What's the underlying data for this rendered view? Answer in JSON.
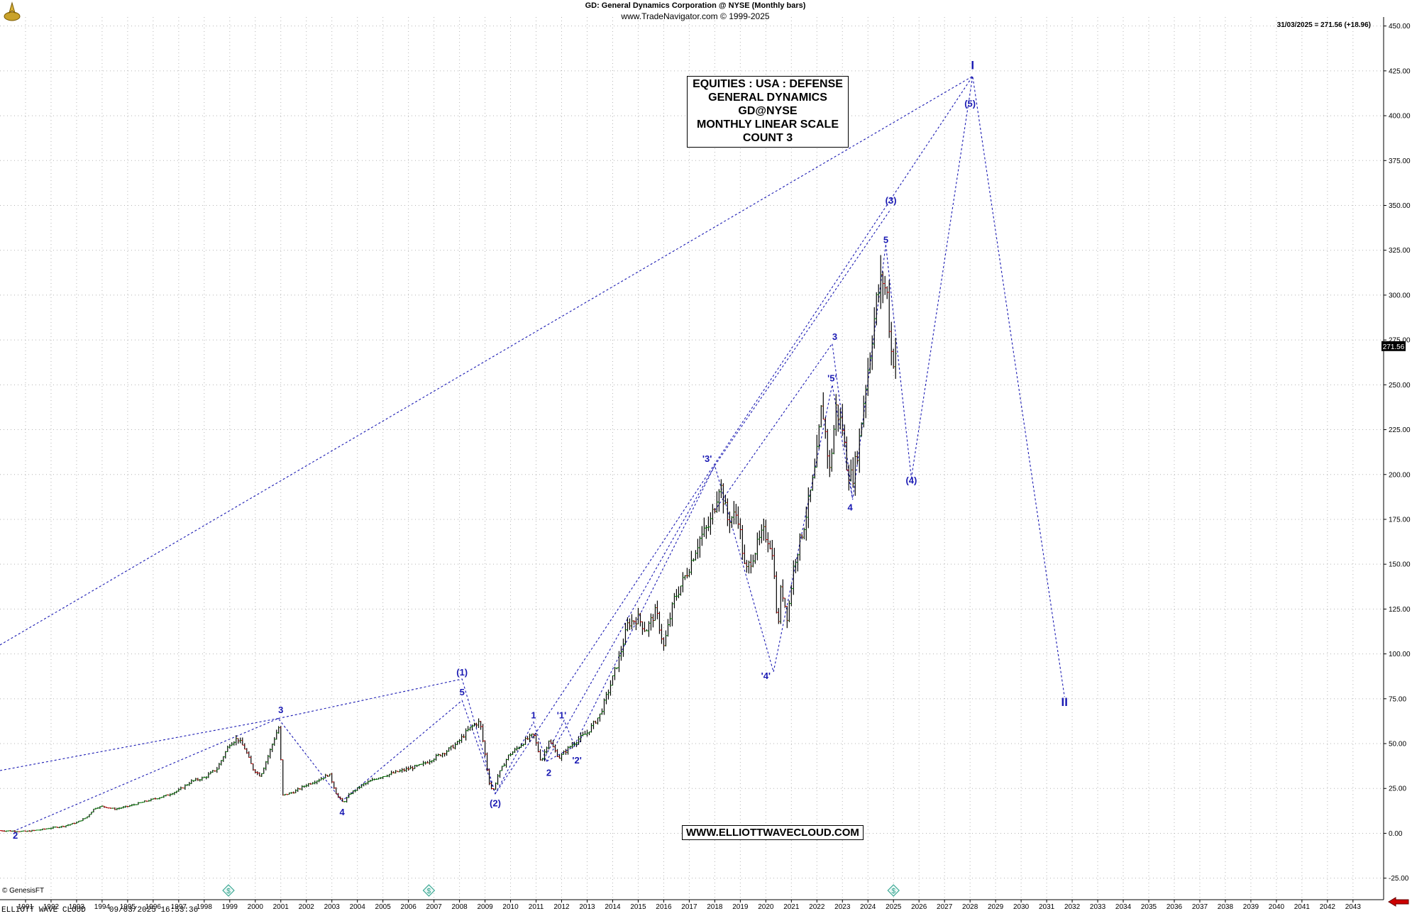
{
  "header": {
    "title_line": "GD:  General Dynamics Corporation @ NYSE  (Monthly bars)",
    "source_line": "www.TradeNavigator.com © 1999-2025",
    "last_price_line": "31/03/2025 = 271.56 (+18.96)"
  },
  "info_box": {
    "lines": [
      "EQUITIES : USA : DEFENSE",
      "GENERAL DYNAMICS",
      "GD@NYSE",
      "MONTHLY LINEAR SCALE",
      "COUNT 3"
    ]
  },
  "website_box": "WWW.ELLIOTTWAVECLOUD.COM",
  "footer": {
    "left_text": "ELLIOTT WAVE CLOUD",
    "timestamp": "09/03/2025 16:53:36",
    "genesis": "© GenesisFT"
  },
  "colors": {
    "price_bars": "#000000",
    "up_bars": "#008000",
    "down_bars": "#cc0000",
    "wave_lines": "#1a1ab3",
    "wave_labels": "#1a1ab3",
    "grid": "#b4b4b4",
    "arrow": "#cc0000"
  },
  "chart_data": {
    "type": "line",
    "subtype": "ohlc-monthly",
    "x_axis": {
      "min": 1990.0,
      "max": 2044.2,
      "tick_labels": [
        "1991",
        "1992",
        "1993",
        "1994",
        "1995",
        "1996",
        "1997",
        "1998",
        "1999",
        "2000",
        "2001",
        "2002",
        "2003",
        "2004",
        "2005",
        "2006",
        "2007",
        "2008",
        "2009",
        "2010",
        "2011",
        "2012",
        "2013",
        "2014",
        "2015",
        "2016",
        "2017",
        "2018",
        "2019",
        "2020",
        "2021",
        "2022",
        "2023",
        "2024",
        "2025",
        "2026",
        "2027",
        "2028",
        "2029",
        "2030",
        "2031",
        "2032",
        "2033",
        "2034",
        "2035",
        "2036",
        "2037",
        "2038",
        "2039",
        "2040",
        "2041",
        "2042",
        "2043"
      ]
    },
    "y_axis": {
      "min": -37,
      "max": 455,
      "tick_labels": [
        "-25.00",
        "0.00",
        "25.00",
        "50.00",
        "75.00",
        "100.00",
        "125.00",
        "150.00",
        "175.00",
        "200.00",
        "225.00",
        "250.00",
        "275.00",
        "300.00",
        "325.00",
        "350.00",
        "375.00",
        "400.00",
        "425.00",
        "450.00"
      ],
      "last_price_label": "271.56"
    },
    "grid": true,
    "price_series": {
      "name": "GD",
      "points": [
        [
          1990.0,
          1.5
        ],
        [
          1991.0,
          1
        ],
        [
          1991.6,
          2
        ],
        [
          1992.0,
          3
        ],
        [
          1992.5,
          4
        ],
        [
          1993.0,
          6
        ],
        [
          1993.4,
          9
        ],
        [
          1993.7,
          14
        ],
        [
          1994.0,
          15
        ],
        [
          1994.5,
          13.5
        ],
        [
          1995.0,
          15
        ],
        [
          1995.5,
          17
        ],
        [
          1996.0,
          19
        ],
        [
          1996.5,
          21
        ],
        [
          1997.0,
          24
        ],
        [
          1997.5,
          29
        ],
        [
          1998.0,
          31
        ],
        [
          1998.5,
          36
        ],
        [
          1999.0,
          50
        ],
        [
          1999.3,
          53
        ],
        [
          1999.6,
          47
        ],
        [
          1999.9,
          36
        ],
        [
          2000.2,
          32
        ],
        [
          2000.5,
          43
        ],
        [
          2000.8,
          55
        ],
        [
          2000.95,
          60
        ],
        [
          2001.05,
          21
        ],
        [
          2001.5,
          23
        ],
        [
          2002.0,
          27
        ],
        [
          2002.5,
          30
        ],
        [
          2002.9,
          33
        ],
        [
          2003.2,
          21
        ],
        [
          2003.45,
          17
        ],
        [
          2003.7,
          22
        ],
        [
          2004.2,
          27
        ],
        [
          2004.8,
          31
        ],
        [
          2005.5,
          34
        ],
        [
          2006.0,
          36
        ],
        [
          2006.5,
          38
        ],
        [
          2007.0,
          42
        ],
        [
          2007.5,
          46
        ],
        [
          2007.9,
          50
        ],
        [
          2008.3,
          57
        ],
        [
          2008.6,
          61
        ],
        [
          2008.8,
          62
        ],
        [
          2009.0,
          44
        ],
        [
          2009.15,
          29
        ],
        [
          2009.3,
          23
        ],
        [
          2009.5,
          32
        ],
        [
          2009.9,
          43
        ],
        [
          2010.3,
          48
        ],
        [
          2010.6,
          52
        ],
        [
          2010.9,
          55
        ],
        [
          2011.2,
          40
        ],
        [
          2011.5,
          52
        ],
        [
          2011.9,
          42
        ],
        [
          2012.3,
          48
        ],
        [
          2012.7,
          53
        ],
        [
          2013.0,
          56
        ],
        [
          2013.5,
          66
        ],
        [
          2013.9,
          82
        ],
        [
          2014.3,
          100
        ],
        [
          2014.6,
          117
        ],
        [
          2015.0,
          120
        ],
        [
          2015.3,
          113
        ],
        [
          2015.7,
          124
        ],
        [
          2016.0,
          104
        ],
        [
          2016.4,
          130
        ],
        [
          2016.9,
          145
        ],
        [
          2017.4,
          164
        ],
        [
          2017.8,
          172
        ],
        [
          2018.0,
          183
        ],
        [
          2018.2,
          196
        ],
        [
          2018.5,
          175
        ],
        [
          2018.9,
          178
        ],
        [
          2019.2,
          145
        ],
        [
          2019.5,
          155
        ],
        [
          2019.9,
          168
        ],
        [
          2020.15,
          163
        ],
        [
          2020.35,
          145
        ],
        [
          2020.45,
          110
        ],
        [
          2020.6,
          138
        ],
        [
          2020.85,
          120
        ],
        [
          2021.1,
          150
        ],
        [
          2021.5,
          172
        ],
        [
          2021.95,
          204
        ],
        [
          2022.2,
          240
        ],
        [
          2022.5,
          202
        ],
        [
          2022.75,
          237
        ],
        [
          2023.0,
          226
        ],
        [
          2023.2,
          202
        ],
        [
          2023.4,
          198
        ],
        [
          2023.65,
          218
        ],
        [
          2023.85,
          243
        ],
        [
          2024.1,
          270
        ],
        [
          2024.35,
          298
        ],
        [
          2024.55,
          310
        ],
        [
          2024.75,
          300
        ],
        [
          2024.95,
          262
        ],
        [
          2025.15,
          271.56
        ]
      ]
    },
    "wave_lines": [
      {
        "name": "grand-upper",
        "points": [
          [
            1990.0,
            105
          ],
          [
            2028.1,
            422
          ]
        ]
      },
      {
        "name": "cycle-wave",
        "points": [
          [
            1990.5,
            1
          ],
          [
            2000.9,
            64
          ],
          [
            2003.4,
            18
          ],
          [
            2008.1,
            74
          ],
          [
            2009.4,
            22
          ],
          [
            2028.1,
            422
          ],
          [
            2031.7,
            76
          ]
        ]
      },
      {
        "name": "channel-3-1",
        "points": [
          [
            1990.0,
            35
          ],
          [
            2000.9,
            64
          ]
        ]
      },
      {
        "name": "channel-1-3",
        "points": [
          [
            2000.9,
            64
          ],
          [
            2008.1,
            86
          ],
          [
            2009.4,
            22
          ]
        ]
      },
      {
        "name": "subwave-a",
        "points": [
          [
            2009.4,
            22
          ],
          [
            2010.9,
            62
          ],
          [
            2011.4,
            40
          ],
          [
            2012.7,
            50
          ],
          [
            2012.8,
            55
          ]
        ]
      },
      {
        "name": "subwave-b",
        "points": [
          [
            2011.3,
            41
          ],
          [
            2012.1,
            63
          ],
          [
            2012.5,
            49
          ]
        ]
      },
      {
        "name": "channel-3prime",
        "points": [
          [
            2011.4,
            40
          ],
          [
            2018.0,
            205
          ]
        ]
      },
      {
        "name": "channel-3prime-b",
        "points": [
          [
            2012.5,
            49
          ],
          [
            2018.0,
            205
          ],
          [
            2020.3,
            90
          ]
        ]
      },
      {
        "name": "channel-4prime",
        "points": [
          [
            2018.0,
            180
          ],
          [
            2022.6,
            273
          ],
          [
            2023.4,
            186
          ]
        ]
      },
      {
        "name": "channel-5prime",
        "points": [
          [
            2020.3,
            90
          ],
          [
            2022.6,
            250
          ],
          [
            2023.4,
            186
          ],
          [
            2024.7,
            328
          ]
        ]
      },
      {
        "name": "channel-4",
        "points": [
          [
            2024.7,
            328
          ],
          [
            2025.7,
            198
          ],
          [
            2028.1,
            422
          ]
        ]
      },
      {
        "name": "channel-3",
        "points": [
          [
            2018.0,
            205
          ],
          [
            2024.9,
            348
          ]
        ]
      }
    ],
    "wave_labels": [
      {
        "text": "2",
        "x": 1990.6,
        "y": -3
      },
      {
        "text": "3",
        "x": 2001.0,
        "y": 67
      },
      {
        "text": "4",
        "x": 2003.4,
        "y": 10
      },
      {
        "text": "(1)",
        "x": 2008.1,
        "y": 88
      },
      {
        "text": "5",
        "x": 2008.1,
        "y": 77
      },
      {
        "text": "(2)",
        "x": 2009.4,
        "y": 15
      },
      {
        "text": "1",
        "x": 2010.9,
        "y": 64
      },
      {
        "text": "2",
        "x": 2011.5,
        "y": 32
      },
      {
        "text": "'1'",
        "x": 2012.0,
        "y": 64
      },
      {
        "text": "'2'",
        "x": 2012.6,
        "y": 39
      },
      {
        "text": "'3'",
        "x": 2017.7,
        "y": 207
      },
      {
        "text": "'4'",
        "x": 2020.0,
        "y": 86
      },
      {
        "text": "3",
        "x": 2022.7,
        "y": 275
      },
      {
        "text": "'5'",
        "x": 2022.6,
        "y": 252
      },
      {
        "text": "4",
        "x": 2023.3,
        "y": 180
      },
      {
        "text": "5",
        "x": 2024.7,
        "y": 329
      },
      {
        "text": "(3)",
        "x": 2024.9,
        "y": 351
      },
      {
        "text": "(4)",
        "x": 2025.7,
        "y": 195
      },
      {
        "text": "(5)",
        "x": 2028.0,
        "y": 405
      },
      {
        "text": "I",
        "x": 2028.1,
        "y": 426
      },
      {
        "text": "II",
        "x": 2031.7,
        "y": 71
      }
    ],
    "dividend_markers": [
      1998.95,
      2006.8,
      2025.0
    ]
  }
}
